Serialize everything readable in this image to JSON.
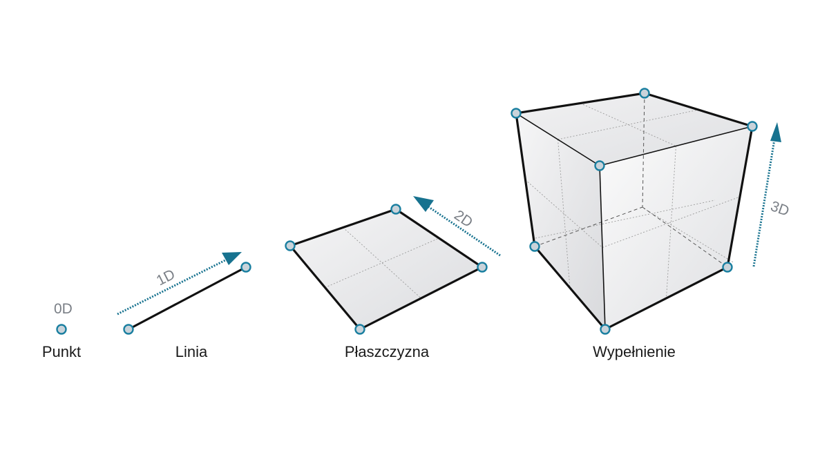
{
  "colors": {
    "vertex_fill": "#c9d3da",
    "vertex_stroke": "#1a7fa0",
    "arrow": "#17728f"
  },
  "labels": {
    "point": "Punkt",
    "line": "Linia",
    "plane": "Płaszczyzna",
    "solid": "Wypełnienie"
  },
  "dimensions": {
    "d0": "0D",
    "d1": "1D",
    "d2": "2D",
    "d3": "3D"
  },
  "icons": {
    "arrow": "arrow-head"
  }
}
